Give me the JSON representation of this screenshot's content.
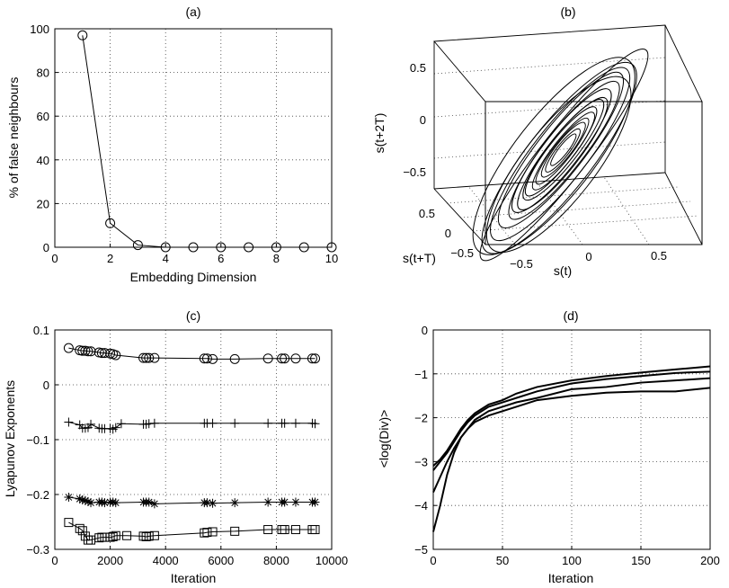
{
  "chart_data": [
    {
      "id": "a",
      "type": "line",
      "title": "(a)",
      "xlabel": "Embedding Dimension",
      "ylabel": "% of false neighbours",
      "xlim": [
        0,
        10
      ],
      "ylim": [
        0,
        100
      ],
      "xticks": [
        "0",
        "2",
        "4",
        "6",
        "8",
        "10"
      ],
      "yticks": [
        "0",
        "20",
        "40",
        "60",
        "80",
        "100"
      ],
      "grid": true,
      "marker": "circle",
      "x": [
        1,
        2,
        3,
        4,
        5,
        6,
        7,
        8,
        9,
        10
      ],
      "y": [
        97,
        11,
        1,
        0,
        0,
        0,
        0,
        0,
        0,
        0
      ]
    },
    {
      "id": "b",
      "type": "line3d",
      "title": "(b)",
      "xlabel": "s(t)",
      "ylabel": "s(t+T)",
      "zlabel": "s(t+2T)",
      "xticks": [
        "−0.5",
        "0",
        "0.5"
      ],
      "yticks": [
        "−0.5",
        "0",
        "0.5"
      ],
      "zticks": [
        "−0.5",
        "0",
        "0.5"
      ],
      "description": "attractor reconstruction, elongated ellipsoid trajectory along the diagonal"
    },
    {
      "id": "c",
      "type": "line",
      "title": "(c)",
      "xlabel": "Iteration",
      "ylabel": "Lyapunov Exponents",
      "xlim": [
        0,
        10000
      ],
      "ylim": [
        -0.3,
        0.1
      ],
      "xticks": [
        "0",
        "2000",
        "4000",
        "6000",
        "8000",
        "10000"
      ],
      "yticks": [
        "−0.3",
        "−0.2",
        "−0.1",
        "0",
        "0.1"
      ],
      "grid": true,
      "series": [
        {
          "marker": "circle",
          "x": [
            500,
            900,
            1000,
            1100,
            1200,
            1300,
            1600,
            1700,
            1800,
            2000,
            2100,
            2200,
            3200,
            3300,
            3400,
            3600,
            5400,
            5500,
            5700,
            6500,
            7700,
            8200,
            8300,
            8700,
            9300,
            9400
          ],
          "y": [
            0.067,
            0.063,
            0.062,
            0.062,
            0.061,
            0.061,
            0.059,
            0.058,
            0.058,
            0.057,
            0.056,
            0.054,
            0.049,
            0.049,
            0.049,
            0.049,
            0.048,
            0.048,
            0.047,
            0.047,
            0.048,
            0.048,
            0.048,
            0.048,
            0.048,
            0.048
          ]
        },
        {
          "marker": "plus",
          "x": [
            500,
            900,
            1000,
            1100,
            1200,
            1300,
            1600,
            1700,
            1800,
            2000,
            2100,
            2200,
            2400,
            3200,
            3300,
            3400,
            3600,
            5400,
            5500,
            5700,
            6500,
            7700,
            8200,
            8300,
            8700,
            9300,
            9400
          ],
          "y": [
            -0.068,
            -0.073,
            -0.079,
            -0.079,
            -0.078,
            -0.072,
            -0.079,
            -0.08,
            -0.08,
            -0.08,
            -0.081,
            -0.078,
            -0.071,
            -0.072,
            -0.072,
            -0.071,
            -0.07,
            -0.07,
            -0.07,
            -0.07,
            -0.07,
            -0.07,
            -0.07,
            -0.07,
            -0.07,
            -0.07,
            -0.071
          ]
        },
        {
          "marker": "asterisk",
          "x": [
            500,
            900,
            1000,
            1100,
            1200,
            1300,
            1600,
            1700,
            1800,
            2000,
            2100,
            2200,
            3200,
            3300,
            3400,
            3600,
            5400,
            5500,
            5700,
            6500,
            7700,
            8200,
            8300,
            8700,
            9300,
            9400
          ],
          "y": [
            -0.205,
            -0.208,
            -0.21,
            -0.211,
            -0.213,
            -0.215,
            -0.214,
            -0.214,
            -0.215,
            -0.214,
            -0.214,
            -0.215,
            -0.214,
            -0.214,
            -0.214,
            -0.217,
            -0.215,
            -0.215,
            -0.216,
            -0.215,
            -0.214,
            -0.214,
            -0.214,
            -0.214,
            -0.214,
            -0.214
          ]
        },
        {
          "marker": "square",
          "x": [
            500,
            900,
            1000,
            1100,
            1200,
            1300,
            1600,
            1700,
            1800,
            2000,
            2100,
            2200,
            2600,
            3200,
            3300,
            3400,
            3600,
            5400,
            5500,
            5700,
            6500,
            7700,
            8200,
            8300,
            8700,
            9300,
            9400
          ],
          "y": [
            -0.251,
            -0.262,
            -0.266,
            -0.276,
            -0.283,
            -0.283,
            -0.279,
            -0.278,
            -0.278,
            -0.278,
            -0.277,
            -0.275,
            -0.275,
            -0.276,
            -0.277,
            -0.276,
            -0.275,
            -0.27,
            -0.269,
            -0.268,
            -0.267,
            -0.264,
            -0.264,
            -0.264,
            -0.264,
            -0.264,
            -0.264
          ]
        }
      ]
    },
    {
      "id": "d",
      "type": "line",
      "title": "(d)",
      "xlabel": "Iteration",
      "ylabel": "<log(Div)>",
      "xlim": [
        0,
        200
      ],
      "ylim": [
        -5,
        0
      ],
      "xticks": [
        "0",
        "50",
        "100",
        "150",
        "200"
      ],
      "yticks": [
        "−5",
        "−4",
        "−3",
        "−2",
        "−1",
        "0"
      ],
      "grid": true,
      "series": [
        {
          "x": [
            0,
            5,
            10,
            15,
            20,
            25,
            30,
            40,
            50,
            60,
            75,
            100,
            125,
            150,
            175,
            200
          ],
          "y": [
            -3.1,
            -2.95,
            -2.75,
            -2.5,
            -2.25,
            -2.05,
            -1.9,
            -1.7,
            -1.6,
            -1.45,
            -1.3,
            -1.15,
            -1.05,
            -0.97,
            -0.9,
            -0.83
          ]
        },
        {
          "x": [
            0,
            5,
            10,
            15,
            20,
            25,
            30,
            40,
            50,
            60,
            75,
            100,
            125,
            150,
            175,
            200
          ],
          "y": [
            -3.2,
            -3.0,
            -2.8,
            -2.55,
            -2.3,
            -2.1,
            -1.95,
            -1.75,
            -1.65,
            -1.55,
            -1.4,
            -1.22,
            -1.12,
            -1.05,
            -0.98,
            -0.95
          ]
        },
        {
          "x": [
            0,
            5,
            10,
            15,
            20,
            25,
            30,
            40,
            50,
            60,
            75,
            100,
            125,
            150,
            175,
            200
          ],
          "y": [
            -3.7,
            -3.35,
            -3.0,
            -2.7,
            -2.45,
            -2.25,
            -2.05,
            -1.85,
            -1.75,
            -1.65,
            -1.55,
            -1.35,
            -1.3,
            -1.2,
            -1.15,
            -1.1
          ]
        },
        {
          "x": [
            0,
            5,
            10,
            15,
            20,
            25,
            30,
            40,
            50,
            60,
            75,
            100,
            125,
            150,
            175,
            200
          ],
          "y": [
            -4.6,
            -4.0,
            -3.3,
            -2.8,
            -2.45,
            -2.25,
            -2.1,
            -1.95,
            -1.85,
            -1.75,
            -1.6,
            -1.5,
            -1.43,
            -1.4,
            -1.4,
            -1.32
          ]
        }
      ]
    }
  ]
}
